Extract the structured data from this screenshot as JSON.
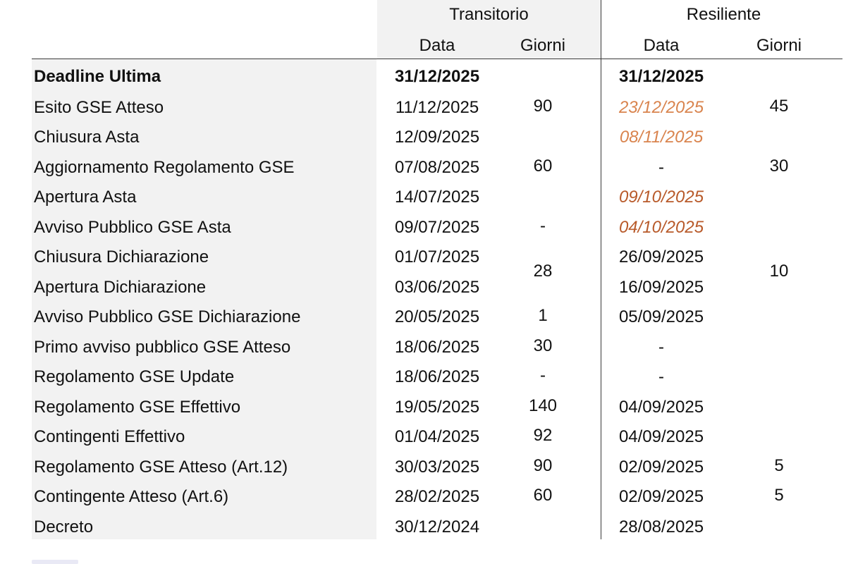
{
  "header": {
    "transitorio": "Transitorio",
    "resiliente": "Resiliente",
    "t_data": "Data",
    "t_giorni": "Giorni",
    "r_data": "Data",
    "r_giorni": "Giorni"
  },
  "rows": [
    {
      "label": "Deadline Ultima",
      "t_data": "31/12/2025",
      "r_data": "31/12/2025"
    },
    {
      "label": "Esito GSE Atteso",
      "t_data": "11/12/2025",
      "r_data": "23/12/2025"
    },
    {
      "label": "Chiusura Asta",
      "t_data": "12/09/2025",
      "r_data": "08/11/2025"
    },
    {
      "label": "Aggiornamento Regolamento GSE",
      "t_data": "07/08/2025",
      "r_data": "-"
    },
    {
      "label": "Apertura Asta",
      "t_data": "14/07/2025",
      "r_data": "09/10/2025"
    },
    {
      "label": "Avviso Pubblico GSE Asta",
      "t_data": "09/07/2025",
      "r_data": "04/10/2025"
    },
    {
      "label": "Chiusura Dichiarazione",
      "t_data": "01/07/2025",
      "r_data": "26/09/2025"
    },
    {
      "label": "Apertura Dichiarazione",
      "t_data": "03/06/2025",
      "r_data": "16/09/2025"
    },
    {
      "label": "Avviso Pubblico GSE Dichiarazione",
      "t_data": "20/05/2025",
      "r_data": "05/09/2025"
    },
    {
      "label": "Primo avviso pubblico GSE Atteso",
      "t_data": "18/06/2025",
      "r_data": "-"
    },
    {
      "label": "Regolamento GSE Update",
      "t_data": "18/06/2025",
      "r_data": "-"
    },
    {
      "label": "Regolamento GSE Effettivo",
      "t_data": "19/05/2025",
      "r_data": "04/09/2025"
    },
    {
      "label": "Contingenti Effettivo",
      "t_data": "01/04/2025",
      "r_data": "04/09/2025"
    },
    {
      "label": "Regolamento GSE Atteso (Art.12)",
      "t_data": "30/03/2025",
      "r_data": "02/09/2025"
    },
    {
      "label": "Contingente Atteso (Art.6)",
      "t_data": "28/02/2025",
      "r_data": "02/09/2025"
    },
    {
      "label": "Decreto",
      "t_data": "30/12/2024",
      "r_data": "28/08/2025"
    }
  ],
  "t_giorni": [
    "90",
    "60",
    "-",
    "28",
    "1",
    "30",
    "-",
    "140",
    "92",
    "90",
    "60"
  ],
  "r_giorni": [
    "45",
    "30",
    "10",
    "5",
    "5"
  ],
  "colors": {
    "orange_light": "#d9844e",
    "orange_dark": "#b85a2a",
    "header_band": "#f2f2f2"
  }
}
